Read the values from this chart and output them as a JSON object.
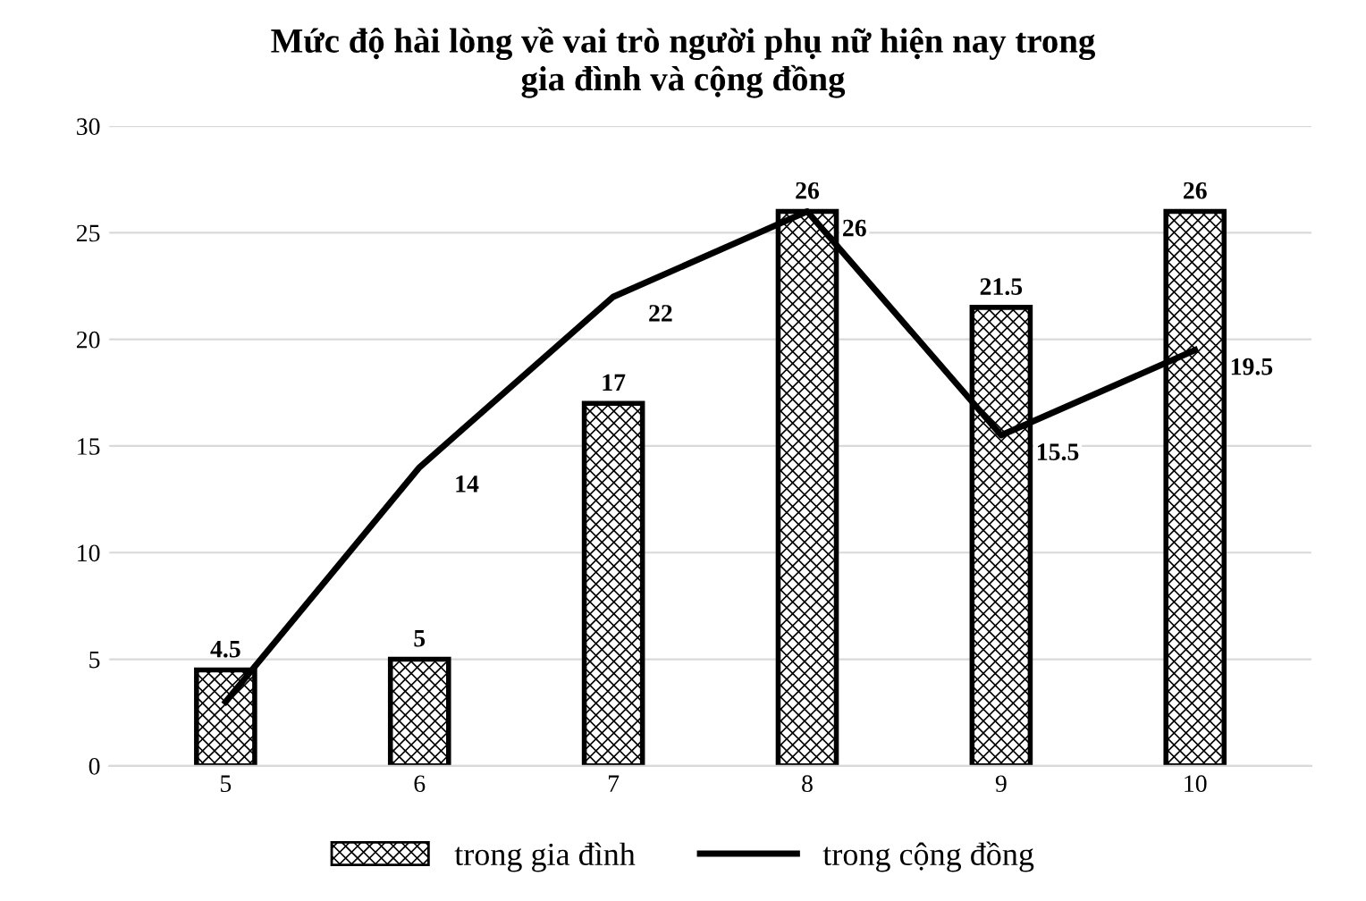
{
  "chart_data": {
    "type": "bar",
    "title": "Mức độ hài lòng về vai trò người phụ nữ hiện nay trong\ngia đình và cộng đồng",
    "categories": [
      "5",
      "6",
      "7",
      "8",
      "9",
      "10"
    ],
    "series": [
      {
        "name": "trong gia đình",
        "color": "#000000",
        "values": [
          4.5,
          5,
          17,
          26,
          21.5,
          26
        ],
        "value_labels": [
          "4.5",
          "5",
          "17",
          "26",
          "21.5",
          "26"
        ]
      },
      {
        "name": "trong cộng đồng",
        "type": "line",
        "color": "#000000",
        "values": [
          3,
          14,
          22,
          26,
          15.5,
          19.5
        ],
        "value_labels": [
          null,
          "14",
          "22",
          "26",
          "15.5",
          "19.5"
        ]
      }
    ],
    "ylim": [
      0,
      30
    ],
    "yticks": [
      0,
      5,
      10,
      15,
      20,
      25,
      30
    ],
    "grid": "y",
    "legend": "bottom",
    "marker": "none",
    "line_style": "solid"
  }
}
